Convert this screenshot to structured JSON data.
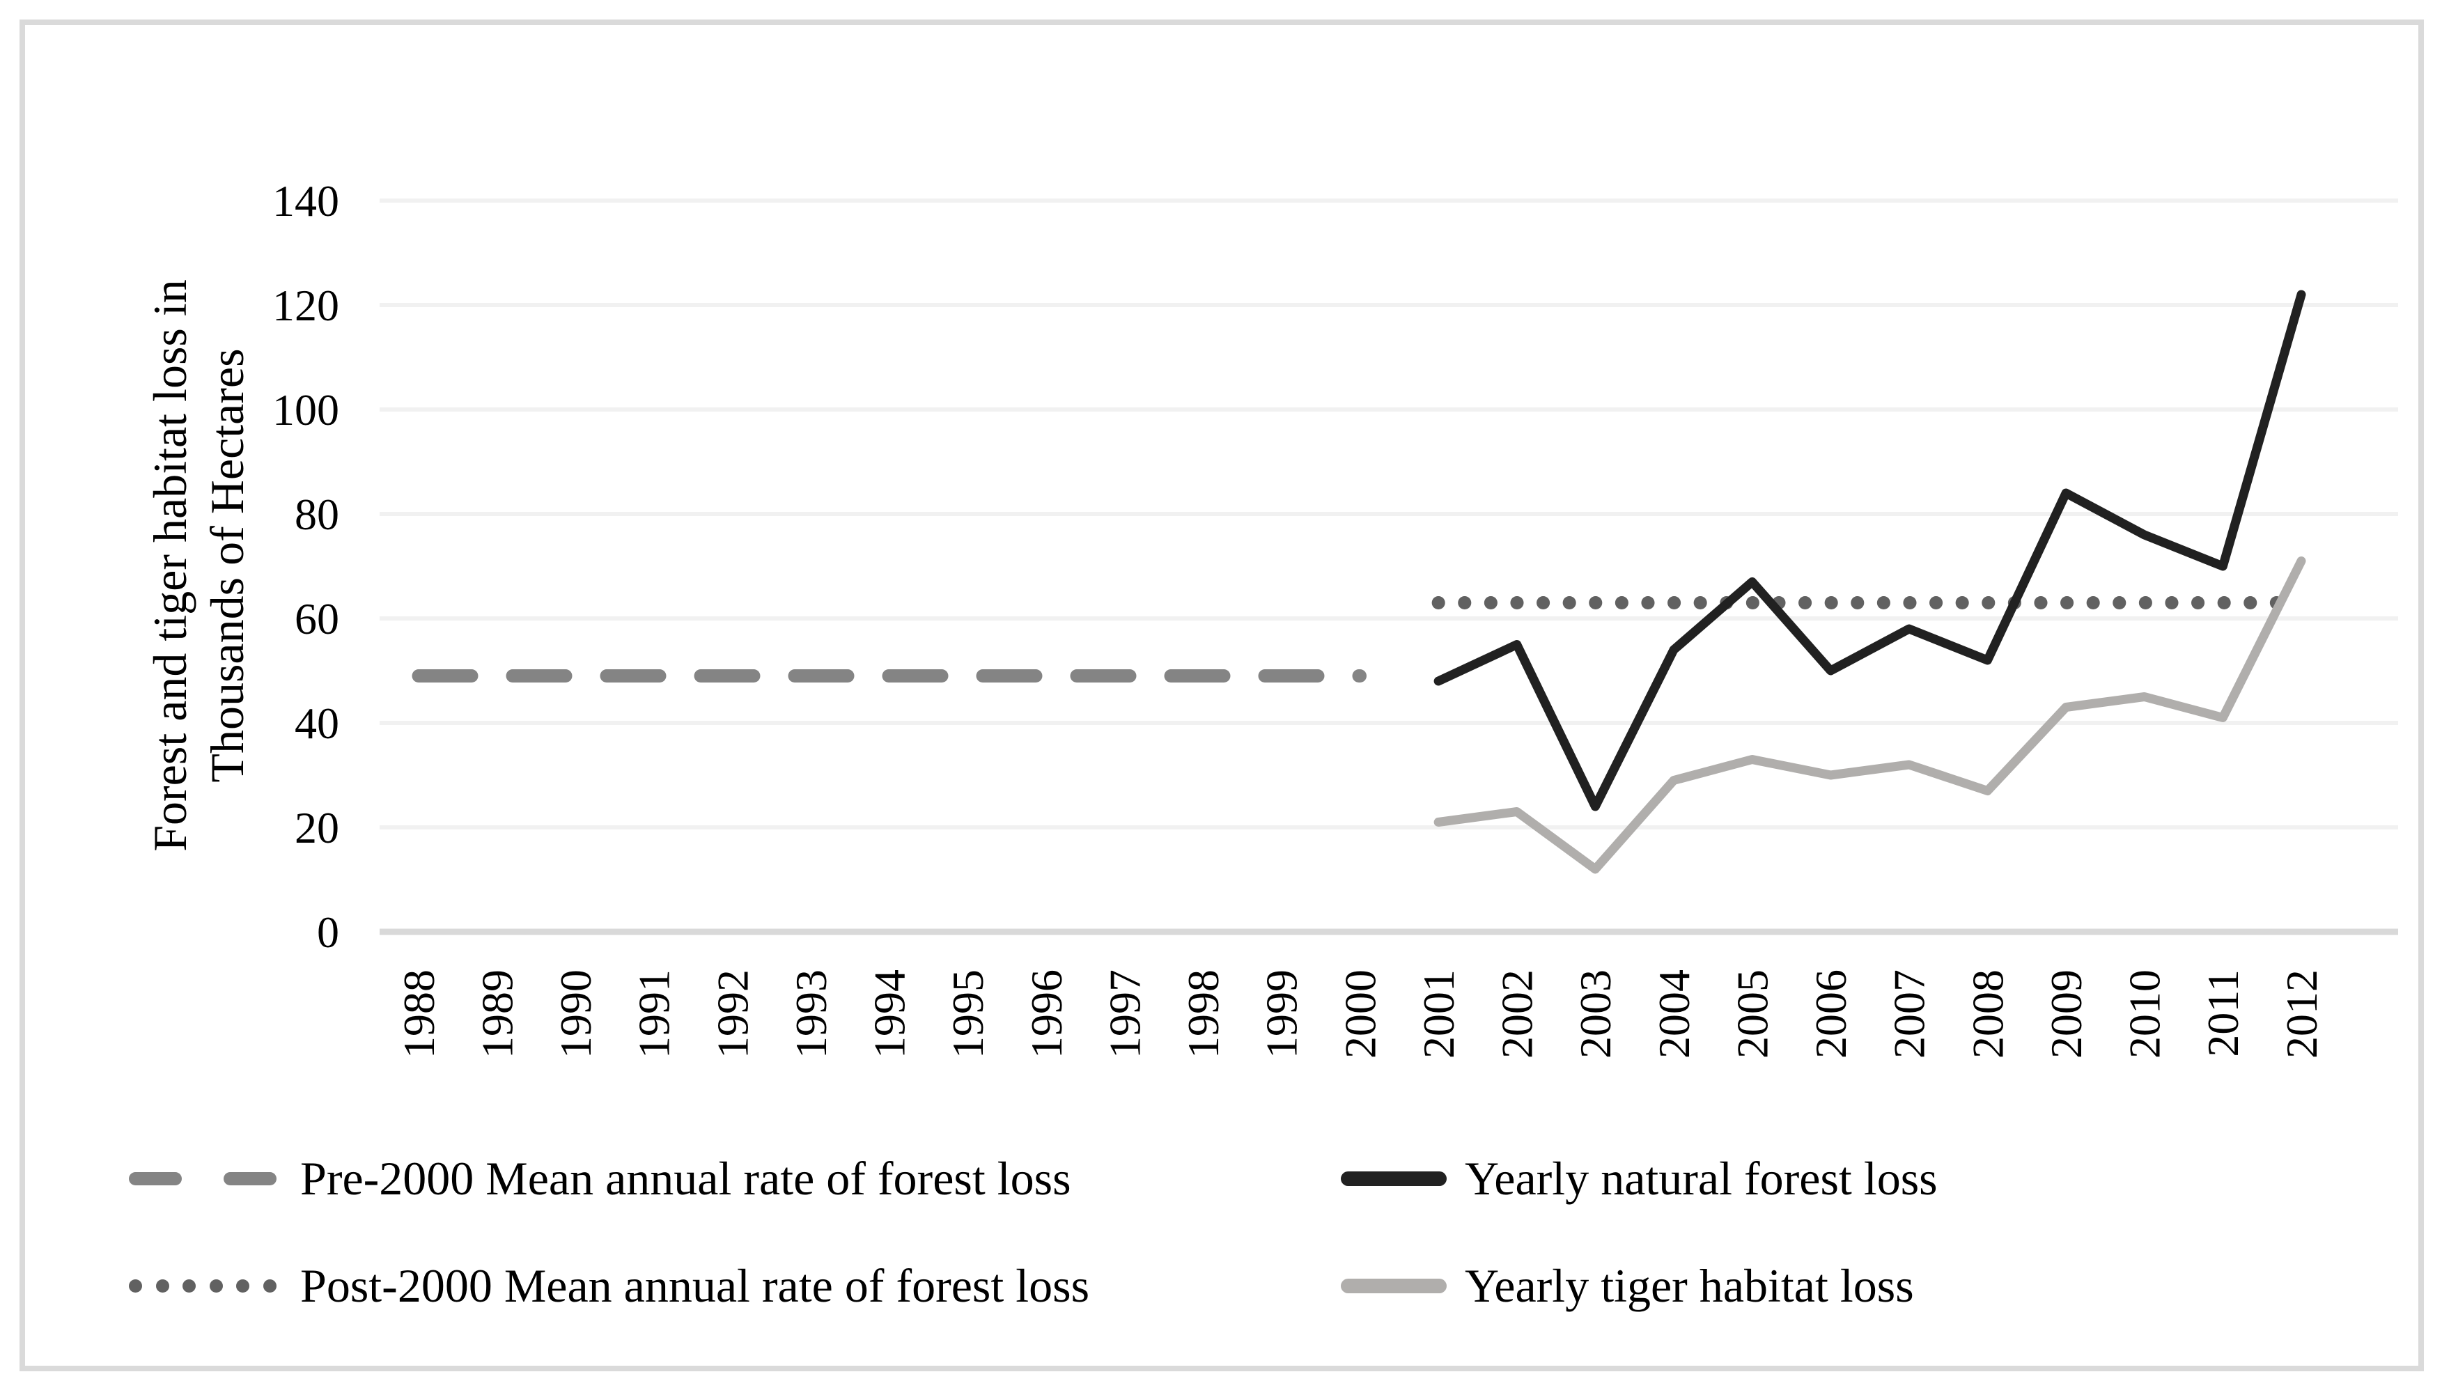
{
  "figure": {
    "background": "#ffffff",
    "border_color": "#dadada"
  },
  "axes": {
    "y_title_line1": "Forest and tiger habitat loss in",
    "y_title_line2": "Thousands of Hectares",
    "y_tick_labels": [
      "0",
      "20",
      "40",
      "60",
      "80",
      "100",
      "120",
      "140"
    ],
    "x_tick_labels": [
      "1988",
      "1989",
      "1990",
      "1991",
      "1992",
      "1993",
      "1994",
      "1995",
      "1996",
      "1997",
      "1998",
      "1999",
      "2000",
      "2001",
      "2002",
      "2003",
      "2004",
      "2005",
      "2006",
      "2007",
      "2008",
      "2009",
      "2010",
      "2011",
      "2012"
    ]
  },
  "colors": {
    "grid": "#f1f1f1",
    "axis_line": "#d9d9d9",
    "pre2000": "#848484",
    "post2000": "#616161",
    "natural": "#212121",
    "tiger": "#b0aeac",
    "text": "#000000"
  },
  "chart_data": {
    "type": "line",
    "title": "",
    "xlabel": "",
    "ylabel": "Forest and tiger habitat loss in Thousands of Hectares",
    "ylim": [
      0,
      140
    ],
    "ytick_step": 20,
    "grid": true,
    "legend_position": "bottom",
    "categories": [
      "1988",
      "1989",
      "1990",
      "1991",
      "1992",
      "1993",
      "1994",
      "1995",
      "1996",
      "1997",
      "1998",
      "1999",
      "2000",
      "2001",
      "2002",
      "2003",
      "2004",
      "2005",
      "2006",
      "2007",
      "2008",
      "2009",
      "2010",
      "2011",
      "2012"
    ],
    "series": [
      {
        "name": "Pre-2000 Mean annual rate of forest loss",
        "style": "dashed",
        "color": "#848484",
        "stroke_width": 19,
        "span": [
          "1988",
          "2000"
        ],
        "constant": 49
      },
      {
        "name": "Post-2000 Mean annual rate of forest loss",
        "style": "dotted",
        "color": "#616161",
        "stroke_width": 19,
        "span": [
          "2001",
          "2012"
        ],
        "constant": 63
      },
      {
        "name": "Yearly natural forest loss",
        "style": "solid",
        "color": "#212121",
        "stroke_width": 13,
        "start": "2001",
        "values": [
          48,
          55,
          24,
          54,
          67,
          50,
          58,
          52,
          84,
          76,
          70,
          122
        ]
      },
      {
        "name": "Yearly tiger habitat loss",
        "style": "solid",
        "color": "#b0aeac",
        "stroke_width": 13,
        "start": "2001",
        "values": [
          21,
          23,
          12,
          29,
          33,
          30,
          32,
          27,
          43,
          45,
          41,
          71
        ]
      }
    ]
  },
  "legend": {
    "items": [
      {
        "label": "Pre-2000 Mean annual rate of forest loss"
      },
      {
        "label": "Yearly natural forest loss"
      },
      {
        "label": "Post-2000 Mean annual rate of forest loss"
      },
      {
        "label": "Yearly tiger habitat loss"
      }
    ]
  }
}
